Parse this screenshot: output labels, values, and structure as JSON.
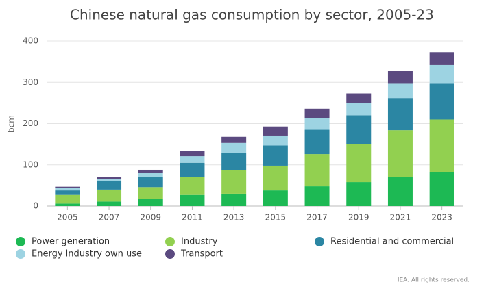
{
  "chart_data": {
    "type": "stacked_bar",
    "title": "Chinese natural gas consumption by sector, 2005-23",
    "ylabel": "bcm",
    "categories": [
      "2005",
      "2007",
      "2009",
      "2011",
      "2013",
      "2015",
      "2017",
      "2019",
      "2021",
      "2023"
    ],
    "series": [
      {
        "name": "Power generation",
        "color": "#1db954",
        "values": [
          6,
          11,
          18,
          27,
          30,
          38,
          48,
          58,
          70,
          83
        ]
      },
      {
        "name": "Industry",
        "color": "#92d050",
        "values": [
          21,
          29,
          28,
          44,
          57,
          60,
          78,
          93,
          114,
          127
        ]
      },
      {
        "name": "Residential and commercial",
        "color": "#2b86a3",
        "values": [
          11,
          20,
          24,
          34,
          41,
          49,
          59,
          69,
          78,
          88
        ]
      },
      {
        "name": "Energy industry own use",
        "color": "#9dd3e2",
        "values": [
          6,
          6,
          10,
          16,
          25,
          24,
          29,
          30,
          36,
          44
        ]
      },
      {
        "name": "Transport",
        "color": "#5b4a80",
        "values": [
          3,
          4,
          8,
          12,
          15,
          22,
          22,
          23,
          29,
          31
        ]
      }
    ],
    "ylim": [
      0,
      400
    ],
    "yticks": [
      0,
      100,
      200,
      300,
      400
    ],
    "grid": true,
    "footer": "IEA. All rights reserved."
  }
}
